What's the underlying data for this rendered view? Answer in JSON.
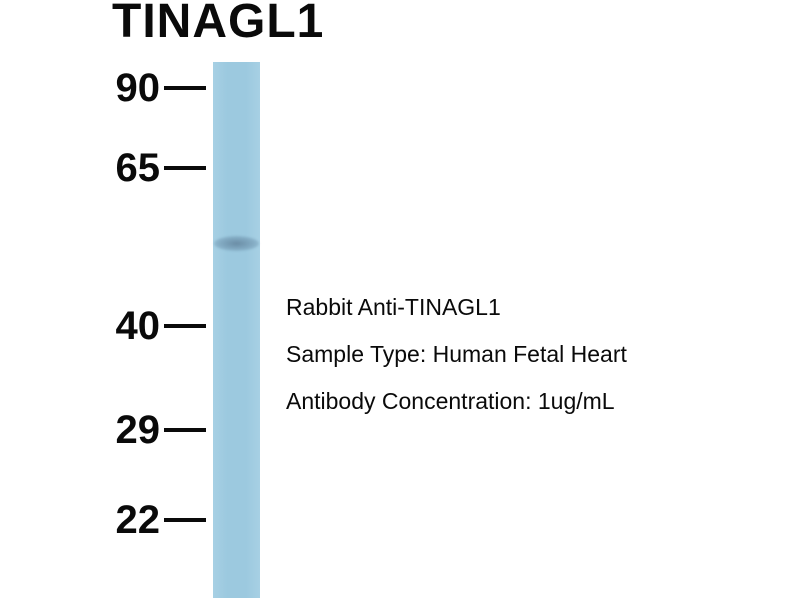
{
  "figure": {
    "title": "TINAGL1",
    "markers": [
      {
        "label": "90"
      },
      {
        "label": "65"
      },
      {
        "label": "40"
      },
      {
        "label": "29"
      },
      {
        "label": "22"
      }
    ],
    "annotations": {
      "line1": "Rabbit Anti-TINAGL1",
      "line2": "Sample Type: Human Fetal Heart",
      "line3": "Antibody Concentration: 1ug/mL"
    },
    "colors": {
      "lane": "#9cc9df",
      "band": "#6e93ad",
      "text": "#0a0a0a",
      "background": "#ffffff"
    }
  }
}
